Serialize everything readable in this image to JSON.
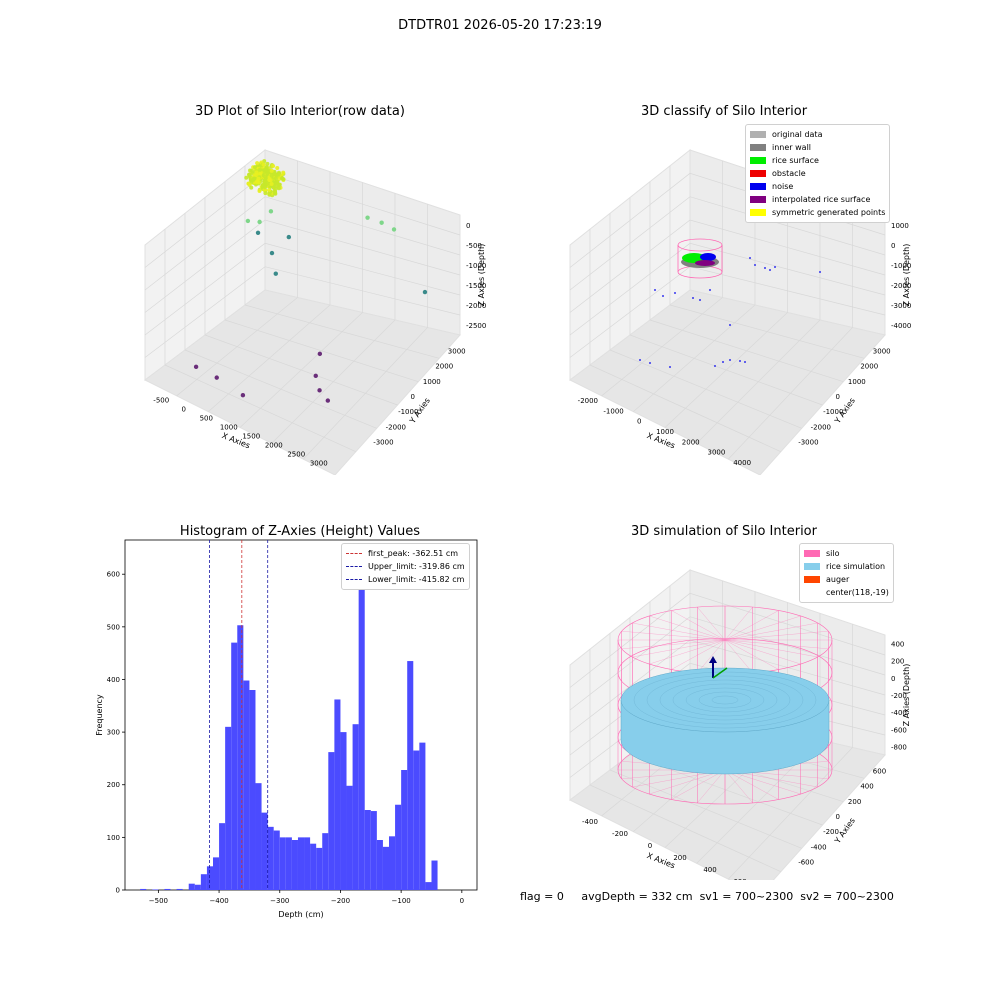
{
  "suptitle": "DTDTR01 2026-05-20 17:23:19",
  "status": {
    "flag": "flag = 0",
    "avg_depth": "avgDepth = 332 cm",
    "sv1": "sv1 = 700~2300",
    "sv2": "sv2 = 700~2300"
  },
  "colors": {
    "hist_bar": "#4b4bff",
    "first_peak": "#cc3333",
    "limit": "#1a1aa6",
    "silo": "#ff69b4",
    "rice_simulation": "#87ceeb",
    "auger": "#ff4500",
    "pane": "#f2f2f2",
    "grid": "#d8d8d8"
  },
  "chart_data": [
    {
      "type": "scatter",
      "title": "3D Plot of Silo Interior(row data)",
      "xlabel": "X Axies",
      "ylabel": "Y Axies",
      "zlabel": "Z Axies (Depth)",
      "x_ticks": [
        "-500",
        "0",
        "500",
        "1000",
        "1500",
        "2000",
        "2500",
        "3000"
      ],
      "y_ticks": [
        "-3000",
        "-2000",
        "-1000",
        "0",
        "1000",
        "2000",
        "3000"
      ],
      "z_ticks": [
        "0",
        "-500",
        "-1000",
        "-1500",
        "-2000",
        "-2500"
      ],
      "xlim": [
        -700,
        3100
      ],
      "ylim": [
        -3500,
        3500
      ],
      "zlim": [
        -3000,
        100
      ],
      "cluster": {
        "x": [
          -200,
          400
        ],
        "y": [
          -400,
          400
        ],
        "z": [
          -400,
          -150
        ]
      },
      "points": [
        {
          "x": -300,
          "y": 0,
          "z": -1100
        },
        {
          "x": -150,
          "y": 200,
          "z": -1300
        },
        {
          "x": 0,
          "y": -100,
          "z": -1000
        },
        {
          "x": 100,
          "y": 300,
          "z": -900
        },
        {
          "x": 200,
          "y": 100,
          "z": -1500
        },
        {
          "x": 400,
          "y": -200,
          "z": -1700
        },
        {
          "x": 500,
          "y": 300,
          "z": -1200
        },
        {
          "x": 1800,
          "y": 1500,
          "z": -800
        },
        {
          "x": 2000,
          "y": 1800,
          "z": -900
        },
        {
          "x": 2200,
          "y": 2000,
          "z": -1000
        },
        {
          "x": 2700,
          "y": 2500,
          "z": -2000
        },
        {
          "x": 1500,
          "y": -500,
          "z": -2600
        },
        {
          "x": 1600,
          "y": -1000,
          "z": -2800
        },
        {
          "x": 1800,
          "y": -1300,
          "z": -2900
        },
        {
          "x": 2100,
          "y": -1600,
          "z": -2900
        },
        {
          "x": -500,
          "y": -2500,
          "z": -2900
        },
        {
          "x": 0,
          "y": -2600,
          "z": -2900
        },
        {
          "x": 700,
          "y": -2900,
          "z": -2900
        }
      ]
    },
    {
      "type": "scatter",
      "title": "3D classify of Silo Interior",
      "xlabel": "X Axies",
      "ylabel": "Y Axies",
      "zlabel": "Z Axies (Depth)",
      "x_ticks": [
        "-2000",
        "-1000",
        "0",
        "1000",
        "2000",
        "3000",
        "4000"
      ],
      "y_ticks": [
        "-3000",
        "-2000",
        "-1000",
        "0",
        "1000",
        "2000",
        "3000"
      ],
      "z_ticks": [
        "1000",
        "0",
        "-1000",
        "-2000",
        "-3000",
        "-4000"
      ],
      "xlim": [
        -2200,
        4400
      ],
      "ylim": [
        -3500,
        3500
      ],
      "zlim": [
        -4500,
        1500
      ],
      "legend": [
        {
          "label": "original data",
          "color": "#b0b0b0"
        },
        {
          "label": "inner wall",
          "color": "#808080"
        },
        {
          "label": "rice surface",
          "color": "#00ee00"
        },
        {
          "label": "obstacle",
          "color": "#ee0000"
        },
        {
          "label": "noise",
          "color": "#0000ee"
        },
        {
          "label": "interpolated rice surface",
          "color": "#800080"
        },
        {
          "label": "symmetric generated points",
          "color": "#ffff00"
        }
      ]
    },
    {
      "type": "bar",
      "title": "Histogram of Z-Axies (Height) Values",
      "xlabel": "Depth (cm)",
      "ylabel": "Frequency",
      "xlim": [
        -555,
        25
      ],
      "ylim": [
        0,
        665
      ],
      "x_ticks": [
        -500,
        -400,
        -300,
        -200,
        -100,
        0
      ],
      "y_ticks": [
        0,
        100,
        200,
        300,
        400,
        500,
        600
      ],
      "bin_width": 10,
      "bins_start": [
        -530,
        -510,
        -490,
        -470,
        -450,
        -440,
        -430,
        -420,
        -410,
        -400,
        -390,
        -380,
        -370,
        -360,
        -350,
        -340,
        -330,
        -320,
        -310,
        -300,
        -290,
        -280,
        -270,
        -260,
        -250,
        -240,
        -230,
        -220,
        -210,
        -200,
        -190,
        -180,
        -170,
        -160,
        -150,
        -140,
        -130,
        -120,
        -110,
        -100,
        -90,
        -80,
        -70,
        -60,
        -50,
        -40,
        -30,
        -20,
        -10
      ],
      "values": [
        2,
        1,
        2,
        2,
        12,
        10,
        30,
        45,
        62,
        127,
        310,
        470,
        503,
        398,
        380,
        203,
        147,
        120,
        113,
        100,
        100,
        95,
        100,
        100,
        88,
        80,
        108,
        262,
        362,
        300,
        198,
        315,
        640,
        152,
        150,
        95,
        82,
        102,
        162,
        228,
        435,
        265,
        280,
        15,
        56,
        0,
        0,
        0,
        0
      ],
      "lines": [
        {
          "label": "first_peak: -362.51 cm",
          "x": -362.51,
          "color": "#cc3333"
        },
        {
          "label": "Upper_limit: -319.86 cm",
          "x": -319.86,
          "color": "#1a1aa6"
        },
        {
          "label": "Lower_limit: -415.82 cm",
          "x": -415.82,
          "color": "#1a1aa6"
        }
      ]
    },
    {
      "type": "surface",
      "title": "3D simulation of Silo Interior",
      "xlabel": "X Axies",
      "ylabel": "Y Axies",
      "zlabel": "Z Axies (Depth)",
      "x_ticks": [
        "-400",
        "-200",
        "0",
        "200",
        "400",
        "600"
      ],
      "y_ticks": [
        "-600",
        "-400",
        "-200",
        "0",
        "200",
        "400",
        "600"
      ],
      "z_ticks": [
        "400",
        "200",
        "0",
        "-200",
        "-400",
        "-600",
        "-800"
      ],
      "xlim": [
        -500,
        700
      ],
      "ylim": [
        -700,
        700
      ],
      "zlim": [
        -950,
        500
      ],
      "silo_radius": 600,
      "silo_z": [
        -900,
        350
      ],
      "rice_surface_z": -300,
      "legend": [
        {
          "label": "silo",
          "color": "#ff69b4"
        },
        {
          "label": "rice simulation",
          "color": "#87ceeb"
        },
        {
          "label": "auger",
          "color": "#ff4500"
        },
        {
          "label": "center(118,-19)",
          "color": ""
        }
      ]
    }
  ]
}
